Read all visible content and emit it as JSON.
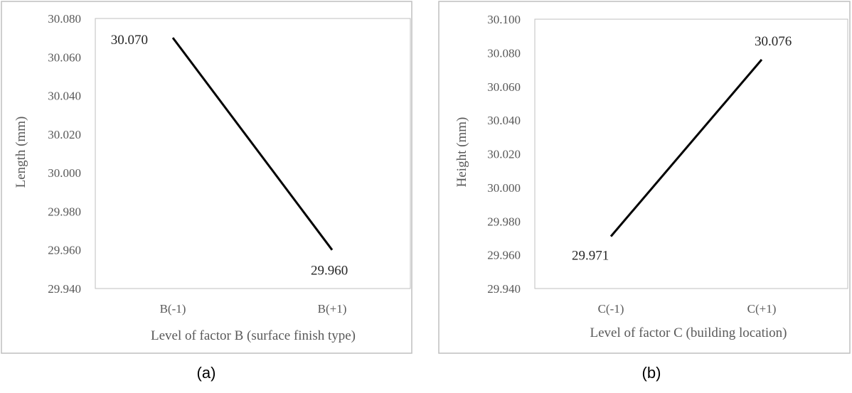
{
  "chart_data": [
    {
      "type": "line",
      "caption": "(a)",
      "categories": [
        "B(-1)",
        "B(+1)"
      ],
      "series": [
        {
          "values": [
            30.07,
            29.96
          ],
          "color": "#000000"
        }
      ],
      "data_labels": [
        "30.070",
        "29.960"
      ],
      "xlabel": "Level of factor B (surface finish type)",
      "ylabel": "Length (mm)",
      "ylim": [
        29.94,
        30.08
      ],
      "yticks": [
        "29.940",
        "29.960",
        "29.980",
        "30.000",
        "30.020",
        "30.040",
        "30.060",
        "30.080"
      ],
      "grid": false
    },
    {
      "type": "line",
      "caption": "(b)",
      "categories": [
        "C(-1)",
        "C(+1)"
      ],
      "series": [
        {
          "values": [
            29.971,
            30.076
          ],
          "color": "#000000"
        }
      ],
      "data_labels": [
        "29.971",
        "30.076"
      ],
      "xlabel": "Level of factor C (building location)",
      "ylabel": "Height (mm)",
      "ylim": [
        29.94,
        30.1
      ],
      "yticks": [
        "29.940",
        "29.960",
        "29.980",
        "30.000",
        "30.020",
        "30.040",
        "30.060",
        "30.080",
        "30.100"
      ],
      "grid": false
    }
  ]
}
